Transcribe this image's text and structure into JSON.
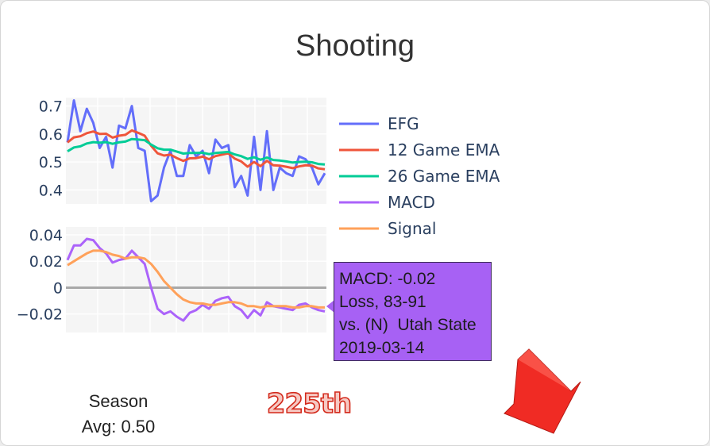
{
  "title": "Shooting",
  "season_label": "Season",
  "season_avg": "Avg: 0.50",
  "rank_text": "225th",
  "tooltip": {
    "line1": "MACD: -0.02",
    "line2": "Loss, 83-91",
    "line3": "vs. (N)  Utah State",
    "line4": "2019-03-14"
  },
  "colors": {
    "efg": "#636efa",
    "ema12": "#ef553b",
    "ema26": "#00cc96",
    "macd": "#ab63fa",
    "signal": "#ffa15a",
    "tooltip": "#a761f4",
    "arrow": "#f02b24"
  },
  "arrow_icon": "down-right-arrow-icon",
  "chart_data": [
    {
      "type": "line",
      "ylim": [
        0.35,
        0.73
      ],
      "yticks": [
        0.4,
        0.5,
        0.6,
        0.7
      ],
      "ytick_labels": [
        "0.4",
        "0.5",
        "0.6",
        "0.7"
      ],
      "grid": true,
      "legend": "right",
      "series": [
        {
          "name": "EFG",
          "values": [
            0.57,
            0.72,
            0.61,
            0.69,
            0.64,
            0.55,
            0.59,
            0.48,
            0.63,
            0.62,
            0.7,
            0.55,
            0.54,
            0.36,
            0.38,
            0.48,
            0.54,
            0.45,
            0.45,
            0.56,
            0.52,
            0.54,
            0.46,
            0.58,
            0.55,
            0.56,
            0.41,
            0.45,
            0.38,
            0.59,
            0.4,
            0.61,
            0.4,
            0.48,
            0.46,
            0.45,
            0.52,
            0.51,
            0.48,
            0.42,
            0.46
          ]
        },
        {
          "name": "12 Game EMA",
          "values": [
            0.57,
            0.588,
            0.592,
            0.603,
            0.609,
            0.6,
            0.601,
            0.587,
            0.594,
            0.597,
            0.613,
            0.604,
            0.594,
            0.558,
            0.531,
            0.523,
            0.526,
            0.514,
            0.504,
            0.513,
            0.514,
            0.519,
            0.51,
            0.521,
            0.526,
            0.531,
            0.512,
            0.502,
            0.483,
            0.5,
            0.485,
            0.504,
            0.488,
            0.487,
            0.483,
            0.478,
            0.484,
            0.488,
            0.487,
            0.477,
            0.474
          ]
        },
        {
          "name": "26 Game EMA",
          "values": [
            0.538,
            0.552,
            0.556,
            0.566,
            0.571,
            0.569,
            0.571,
            0.565,
            0.57,
            0.573,
            0.582,
            0.58,
            0.578,
            0.562,
            0.549,
            0.544,
            0.544,
            0.537,
            0.53,
            0.532,
            0.532,
            0.533,
            0.528,
            0.532,
            0.534,
            0.536,
            0.527,
            0.521,
            0.511,
            0.517,
            0.508,
            0.516,
            0.507,
            0.505,
            0.502,
            0.498,
            0.5,
            0.501,
            0.499,
            0.493,
            0.491
          ]
        }
      ]
    },
    {
      "type": "line",
      "ylim": [
        -0.034,
        0.046
      ],
      "yticks": [
        -0.02,
        0,
        0.02,
        0.04
      ],
      "ytick_labels": [
        "−0.02",
        "0",
        "0.02",
        "0.04"
      ],
      "zero_line": true,
      "grid": true,
      "series": [
        {
          "name": "MACD",
          "values": [
            0.021,
            0.032,
            0.032,
            0.037,
            0.036,
            0.03,
            0.026,
            0.019,
            0.021,
            0.022,
            0.028,
            0.023,
            0.018,
            0.0,
            -0.016,
            -0.02,
            -0.018,
            -0.022,
            -0.025,
            -0.019,
            -0.017,
            -0.013,
            -0.016,
            -0.01,
            -0.008,
            -0.007,
            -0.014,
            -0.017,
            -0.023,
            -0.017,
            -0.021,
            -0.011,
            -0.014,
            -0.015,
            -0.016,
            -0.017,
            -0.013,
            -0.012,
            -0.015,
            -0.017,
            -0.018
          ]
        },
        {
          "name": "Signal",
          "values": [
            0.017,
            0.02,
            0.023,
            0.026,
            0.028,
            0.028,
            0.027,
            0.025,
            0.024,
            0.022,
            0.023,
            0.023,
            0.022,
            0.018,
            0.012,
            0.005,
            0.0,
            -0.005,
            -0.009,
            -0.011,
            -0.012,
            -0.012,
            -0.013,
            -0.013,
            -0.012,
            -0.011,
            -0.011,
            -0.012,
            -0.014,
            -0.014,
            -0.015,
            -0.014,
            -0.014,
            -0.014,
            -0.014,
            -0.015,
            -0.015,
            -0.014,
            -0.014,
            -0.015,
            -0.015
          ]
        }
      ]
    }
  ]
}
